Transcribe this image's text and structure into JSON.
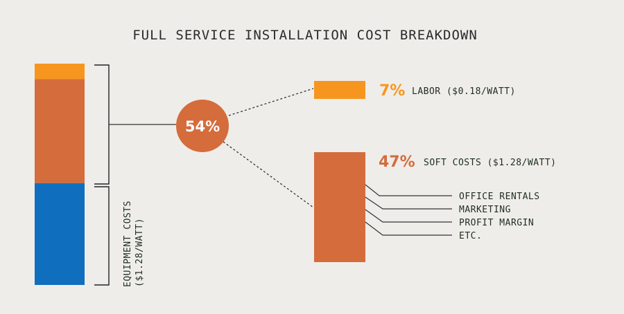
{
  "title": "FULL SERVICE INSTALLATION COST BREAKDOWN",
  "colors": {
    "labor": "#f7961e",
    "soft": "#d46c3c",
    "equipment": "#0f6fbe",
    "background": "#efedea"
  },
  "chart_data": {
    "type": "bar",
    "title": "FULL SERVICE INSTALLATION COST BREAKDOWN",
    "stacked_bar": [
      {
        "name": "labor",
        "value": 7
      },
      {
        "name": "soft",
        "value": 47
      },
      {
        "name": "equipment",
        "value": 46
      }
    ],
    "combined": {
      "label": "54%",
      "value": 54
    },
    "labor": {
      "pct_label": "7%",
      "label": "LABOR ($0.18/WATT)",
      "value": 7
    },
    "soft": {
      "pct_label": "47%",
      "label": "SOFT COSTS ($1.28/WATT)",
      "value": 47
    },
    "equipment": {
      "label_line1": "EQUIPMENT COSTS",
      "label_line2": "($1.28/WATT)"
    },
    "soft_items": [
      "OFFICE RENTALS",
      "MARKETING",
      "PROFIT MARGIN",
      "ETC."
    ]
  }
}
